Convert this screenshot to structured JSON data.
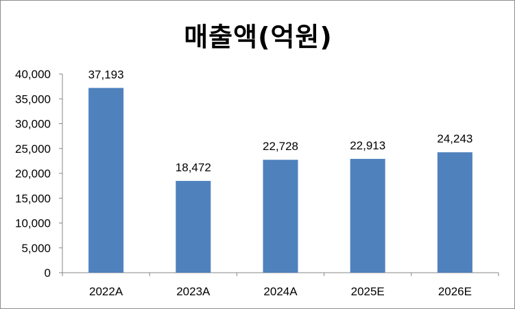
{
  "chart_data": {
    "type": "bar",
    "title": "매출액(억원)",
    "categories": [
      "2022A",
      "2023A",
      "2024A",
      "2025E",
      "2026E"
    ],
    "values": [
      37193,
      18472,
      22728,
      22913,
      24243
    ],
    "data_labels": [
      "37,193",
      "18,472",
      "22,728",
      "22,913",
      "24,243"
    ],
    "ylim": [
      0,
      40000
    ],
    "yticks": [
      0,
      5000,
      10000,
      15000,
      20000,
      25000,
      30000,
      35000,
      40000
    ],
    "ytick_labels": [
      "0",
      "5,000",
      "10,000",
      "15,000",
      "20,000",
      "25,000",
      "30,000",
      "35,000",
      "40,000"
    ],
    "grid": false,
    "legend": "none",
    "bar_color": "#4f81bd"
  }
}
